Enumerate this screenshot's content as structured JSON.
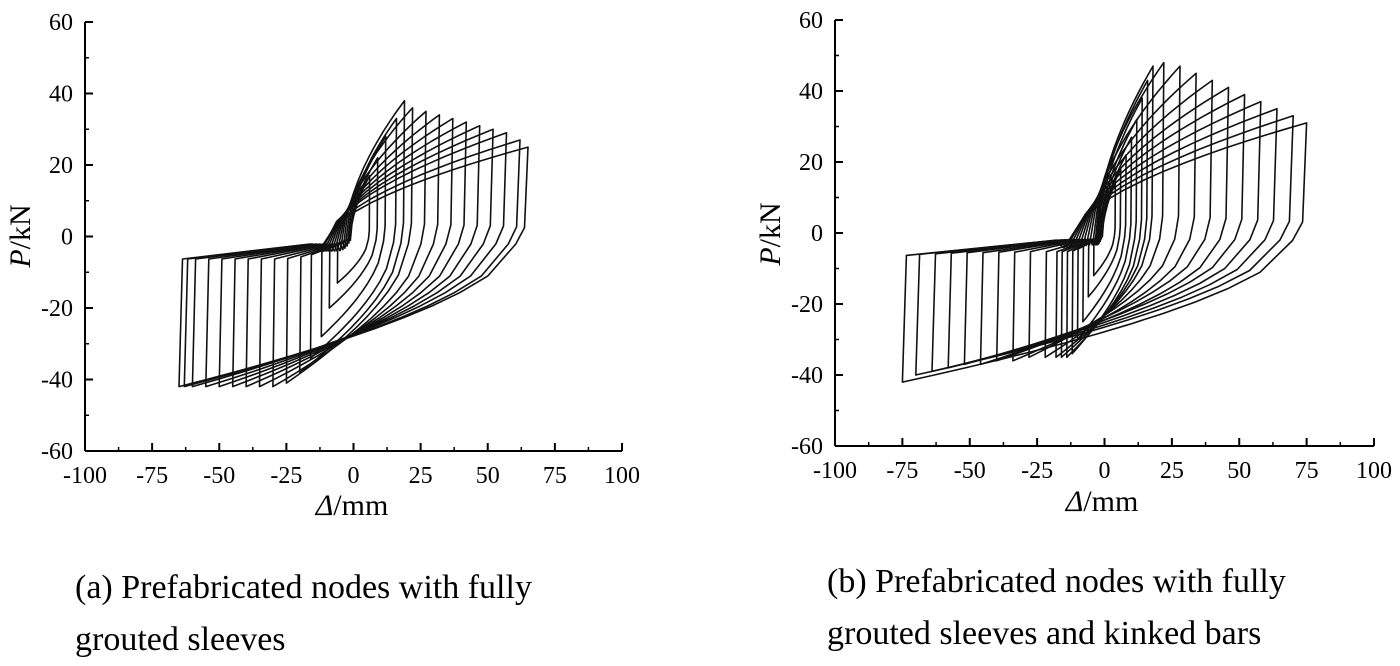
{
  "chart_data": [
    {
      "type": "line",
      "panel": "a",
      "caption": "(a) Prefabricated nodes with fully\ngrouted sleeves",
      "x_axis": {
        "symbol": "Δ",
        "unit": "/mm",
        "range": [
          -100,
          100
        ],
        "ticks": [
          "-100",
          "-75",
          "-50",
          "-25",
          "0",
          "25",
          "50",
          "75",
          "100"
        ]
      },
      "y_axis": {
        "symbol": "P",
        "unit": "/kN",
        "range": [
          -60,
          60
        ],
        "ticks": [
          "60",
          "40",
          "20",
          "0",
          "-20",
          "-40",
          "-60"
        ]
      },
      "grid": false,
      "hysteresis": {
        "amplitudes_mm": [
          6,
          9,
          12,
          16,
          19,
          22,
          27,
          32,
          37,
          42,
          47,
          52,
          57,
          62,
          65
        ],
        "positive_peak_kN": [
          17,
          22,
          28,
          33,
          38,
          36,
          35,
          34,
          33,
          32,
          31,
          30,
          29,
          27,
          25
        ],
        "negative_amplitudes_mm": [
          -6,
          -9,
          -12,
          -16,
          -20,
          -25,
          -30,
          -35,
          -40,
          -45,
          -50,
          -55,
          -60,
          -63,
          -65
        ],
        "negative_peak_kN": [
          -13,
          -20,
          -28,
          -34,
          -38,
          -41,
          -42,
          -42,
          -42,
          -42,
          -42,
          -42,
          -42,
          -42,
          -42
        ]
      }
    },
    {
      "type": "line",
      "panel": "b",
      "caption": "(b) Prefabricated nodes with fully\ngrouted sleeves and kinked bars",
      "x_axis": {
        "symbol": "Δ",
        "unit": "/mm",
        "range": [
          -100,
          100
        ],
        "ticks": [
          "-100",
          "-75",
          "-50",
          "-25",
          "0",
          "25",
          "50",
          "75",
          "100"
        ]
      },
      "y_axis": {
        "symbol": "P",
        "unit": "/kN",
        "range": [
          -60,
          60
        ],
        "ticks": [
          "60",
          "40",
          "20",
          "0",
          "-20",
          "-40",
          "-60"
        ]
      },
      "grid": false,
      "hysteresis": {
        "amplitudes_mm": [
          4,
          6,
          8,
          10,
          12,
          14,
          16,
          18,
          22,
          28,
          34,
          40,
          46,
          52,
          58,
          64,
          70,
          75
        ],
        "positive_peak_kN": [
          14,
          18,
          22,
          27,
          32,
          38,
          43,
          47,
          48,
          47,
          45,
          43,
          41,
          39,
          37,
          35,
          33,
          31
        ],
        "negative_amplitudes_mm": [
          -4,
          -6,
          -8,
          -10,
          -12,
          -14,
          -16,
          -18,
          -22,
          -28,
          -34,
          -40,
          -46,
          -52,
          -58,
          -64,
          -70,
          -75
        ],
        "negative_peak_kN": [
          -12,
          -18,
          -25,
          -30,
          -34,
          -35,
          -35,
          -35,
          -35,
          -35,
          -36,
          -36,
          -37,
          -37,
          -38,
          -39,
          -40,
          -42
        ]
      }
    }
  ]
}
